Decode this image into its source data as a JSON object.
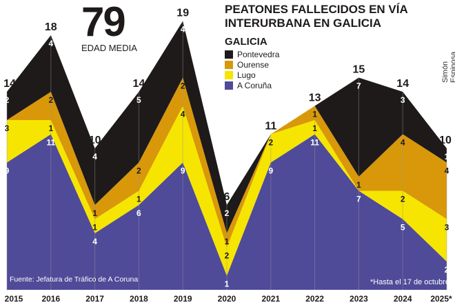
{
  "header": {
    "big_number": "79",
    "big_number_label": "EDAD MEDIA",
    "title_line1": "PEATONES FALLECIDOS EN VÍA",
    "title_line2": "INTERURBANA EN GALICIA"
  },
  "credits": {
    "author": "Simón Espinosa",
    "source": "Fuente: Jefatura de Tráfico de A Coruna",
    "note": "*Hasta el 17 de octubre"
  },
  "chart_data": {
    "type": "area",
    "stacked": true,
    "legend_title": "GALICIA",
    "legend_placement": "top-right",
    "categories": [
      "2015",
      "2016",
      "2017",
      "2018",
      "2019",
      "2020",
      "2021",
      "2022",
      "2023",
      "2024",
      "2025*"
    ],
    "series": [
      {
        "name": "A Coruña",
        "color": "#4f4b98",
        "values": [
          9,
          11,
          4,
          6,
          9,
          1,
          9,
          11,
          7,
          5,
          2
        ]
      },
      {
        "name": "Lugo",
        "color": "#f6e500",
        "values": [
          3,
          1,
          1,
          1,
          4,
          2,
          2,
          1,
          0,
          2,
          3
        ]
      },
      {
        "name": "Ourense",
        "color": "#d8980a",
        "values": [
          0,
          2,
          1,
          2,
          2,
          1,
          0,
          1,
          1,
          4,
          4
        ]
      },
      {
        "name": "Pontevedra",
        "color": "#1e1a1a",
        "values": [
          2,
          4,
          4,
          5,
          4,
          2,
          0,
          0,
          7,
          3,
          1
        ]
      }
    ],
    "totals": [
      14,
      18,
      10,
      14,
      19,
      6,
      11,
      13,
      15,
      14,
      10
    ],
    "grid": "vertical lines at each year"
  }
}
